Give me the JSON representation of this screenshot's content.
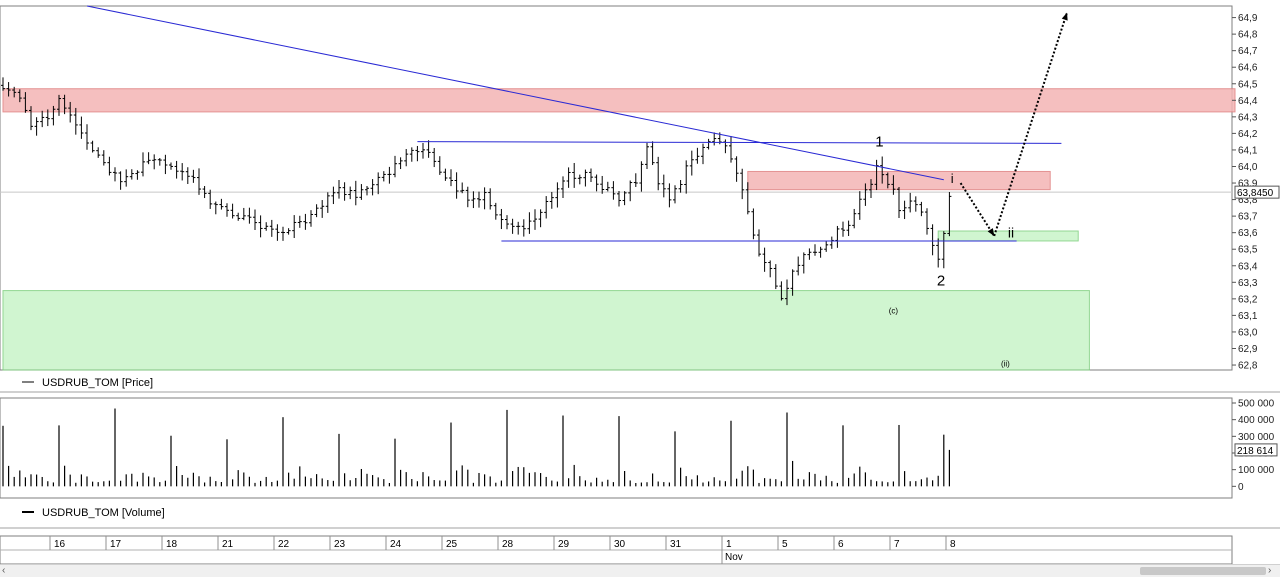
{
  "chart_data": [
    {
      "type": "ohlc",
      "legend_label": "USDRUB_TOM [Price]",
      "y_ticks": [
        "64,9",
        "64,8",
        "64,7",
        "64,6",
        "64,5",
        "64,4",
        "64,3",
        "64,2",
        "64,1",
        "64,0",
        "63,9",
        "63,8",
        "63,7",
        "63,6",
        "63,5",
        "63,4",
        "63,3",
        "63,2",
        "63,1",
        "63,0",
        "62,9",
        "62,8"
      ],
      "ylim": [
        62.77,
        64.97
      ],
      "last_price_label": "63,8450",
      "last_price": 63.845,
      "wave_labels": [
        "1",
        "i",
        "ii",
        "2",
        "(c)",
        "(ii)"
      ],
      "resistance_zones": [
        {
          "y_from": 64.33,
          "y_to": 64.47,
          "x_from": 0,
          "x_to": 220,
          "color": "#f4b4b4"
        },
        {
          "y_from": 63.86,
          "y_to": 63.97,
          "x_from": 133,
          "x_to": 187,
          "color": "#f4b4b4"
        }
      ],
      "support_zones": [
        {
          "y_from": 63.55,
          "y_to": 63.61,
          "x_from": 167,
          "x_to": 192,
          "color": "#c8f4c8"
        },
        {
          "y_from": 62.77,
          "y_to": 63.25,
          "x_from": 0,
          "x_to": 194,
          "color": "#c8f4c8"
        }
      ],
      "trend_lines": [
        {
          "from": [
            15,
            64.97
          ],
          "to": [
            168,
            63.92
          ]
        },
        {
          "from": [
            74,
            64.15
          ],
          "to": [
            189,
            64.14
          ]
        },
        {
          "from": [
            89,
            63.55
          ],
          "to": [
            181,
            63.55
          ]
        }
      ],
      "projections": [
        {
          "from": [
            171,
            63.9
          ],
          "to": [
            177,
            63.58
          ]
        },
        {
          "from": [
            177,
            63.58
          ],
          "to": [
            190,
            64.93
          ]
        }
      ]
    },
    {
      "type": "bar",
      "legend_label": "USDRUB_TOM [Volume]",
      "y_ticks": [
        "500 000",
        "400 000",
        "300 000",
        "200 000",
        "100 000",
        "0"
      ],
      "ylim": [
        -70000,
        530000
      ],
      "last_volume_label": "218 614"
    }
  ],
  "time_axis": {
    "labels": [
      "16",
      "17",
      "18",
      "21",
      "22",
      "23",
      "24",
      "25",
      "28",
      "29",
      "30",
      "31",
      "1",
      "5",
      "6",
      "7",
      "8"
    ],
    "month_label": "Nov"
  }
}
